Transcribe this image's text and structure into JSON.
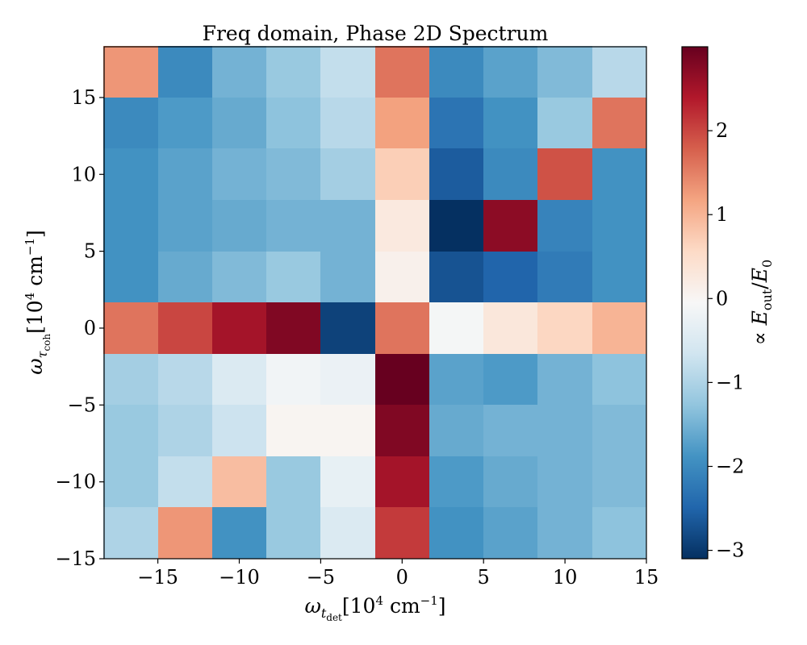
{
  "chart_data": {
    "type": "heatmap",
    "title": "Freq domain, Phase 2D Spectrum",
    "xlabel": {
      "omega": "ω",
      "sub": "t",
      "subsub": "det",
      "unit_pre": "[10",
      "unit_exp": "4",
      "unit_mid": " cm",
      "unit_exp2": "−1",
      "unit_post": "]"
    },
    "ylabel": {
      "omega": "ω",
      "sub": "τ",
      "subsub": "coh",
      "unit_pre": "[10",
      "unit_exp": "4",
      "unit_mid": " cm",
      "unit_exp2": "−1",
      "unit_post": "]"
    },
    "colorbar_label": {
      "prefix": "∝ ",
      "E": "E",
      "Esub": "out",
      "slash": "/",
      "E0": "E",
      "E0sub": "0"
    },
    "x_range": [
      -18.3,
      15
    ],
    "y_range": [
      -15,
      18.3
    ],
    "x_ticks": [
      -15,
      -10,
      -5,
      0,
      5,
      10,
      15
    ],
    "x_tick_labels": [
      "−15",
      "−10",
      "−5",
      "0",
      "5",
      "10",
      "15"
    ],
    "y_ticks": [
      -15,
      -10,
      -5,
      0,
      5,
      10,
      15
    ],
    "y_tick_labels": [
      "−15",
      "−10",
      "−5",
      "0",
      "5",
      "10",
      "15"
    ],
    "x_centers": [
      -16.67,
      -13.33,
      -10.0,
      -6.67,
      -3.33,
      0.0,
      3.33,
      6.67,
      10.0,
      13.33
    ],
    "y_centers": [
      16.67,
      13.33,
      10.0,
      6.67,
      3.33,
      0.0,
      -3.33,
      -6.67,
      -10.0,
      -13.33
    ],
    "values": [
      [
        1.3,
        -2.0,
        -1.5,
        -1.2,
        -0.8,
        1.6,
        -2.0,
        -1.7,
        -1.4,
        -0.9
      ],
      [
        -2.0,
        -1.8,
        -1.6,
        -1.3,
        -0.9,
        1.2,
        -2.3,
        -1.9,
        -1.2,
        1.6
      ],
      [
        -1.9,
        -1.7,
        -1.5,
        -1.4,
        -1.1,
        0.7,
        -2.6,
        -2.0,
        1.9,
        -1.9
      ],
      [
        -1.9,
        -1.7,
        -1.6,
        -1.5,
        -1.5,
        0.25,
        -3.1,
        2.7,
        -2.1,
        -1.9
      ],
      [
        -1.9,
        -1.6,
        -1.4,
        -1.2,
        -1.5,
        0.1,
        -2.7,
        -2.5,
        -2.2,
        -1.9
      ],
      [
        1.6,
        2.0,
        2.5,
        2.8,
        -2.9,
        1.6,
        -0.1,
        0.3,
        0.6,
        1.0
      ],
      [
        -1.1,
        -0.9,
        -0.5,
        -0.15,
        -0.25,
        3.0,
        -1.7,
        -1.8,
        -1.5,
        -1.3
      ],
      [
        -1.2,
        -1.0,
        -0.7,
        0.02,
        0.02,
        2.8,
        -1.6,
        -1.5,
        -1.5,
        -1.4
      ],
      [
        -1.2,
        -0.8,
        0.9,
        -1.2,
        -0.3,
        2.5,
        -1.8,
        -1.6,
        -1.5,
        -1.4
      ],
      [
        -1.0,
        1.3,
        -1.9,
        -1.2,
        -0.5,
        2.1,
        -1.9,
        -1.7,
        -1.5,
        -1.3
      ]
    ],
    "colorbar": {
      "range": [
        -3.1,
        3.0
      ],
      "ticks": [
        -3,
        -2,
        -1,
        0,
        1,
        2
      ],
      "tick_labels": [
        "−3",
        "−2",
        "−1",
        "0",
        "1",
        "2"
      ],
      "colormap": "RdBu_r"
    },
    "grid": false
  }
}
